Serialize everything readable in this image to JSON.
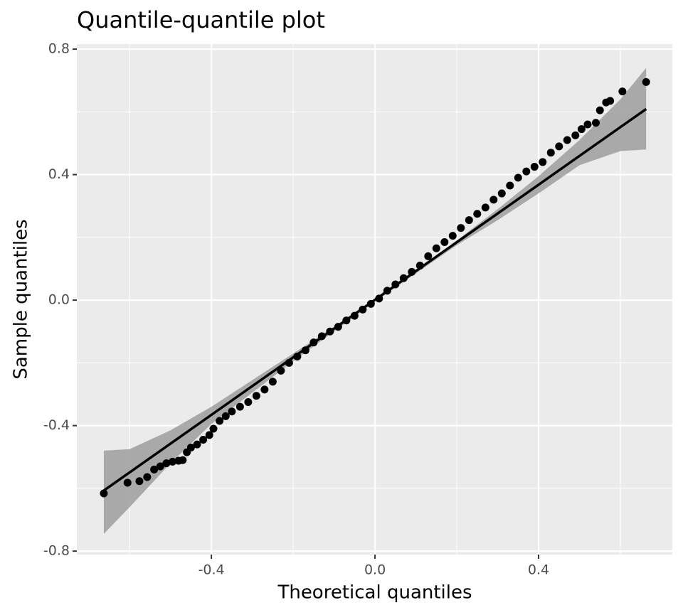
{
  "chart_data": {
    "type": "scatter",
    "title": "Quantile-quantile plot",
    "x_label": "Theoretical quantiles",
    "y_label": "Sample quantiles",
    "color": "#000000",
    "x": [
      -0.663,
      -0.605,
      -0.576,
      -0.557,
      -0.54,
      -0.525,
      -0.51,
      -0.495,
      -0.48,
      -0.47,
      -0.46,
      -0.45,
      -0.435,
      -0.42,
      -0.405,
      -0.395,
      -0.38,
      -0.365,
      -0.35,
      -0.33,
      -0.31,
      -0.29,
      -0.27,
      -0.25,
      -0.23,
      -0.21,
      -0.19,
      -0.17,
      -0.15,
      -0.13,
      -0.11,
      -0.09,
      -0.07,
      -0.05,
      -0.03,
      -0.01,
      0.01,
      0.03,
      0.05,
      0.07,
      0.09,
      0.11,
      0.13,
      0.15,
      0.17,
      0.19,
      0.21,
      0.23,
      0.25,
      0.27,
      0.29,
      0.31,
      0.33,
      0.35,
      0.37,
      0.39,
      0.41,
      0.43,
      0.45,
      0.47,
      0.49,
      0.505,
      0.52,
      0.54,
      0.55,
      0.565,
      0.575,
      0.605,
      0.663
    ],
    "values": [
      -0.616,
      -0.582,
      -0.577,
      -0.564,
      -0.54,
      -0.53,
      -0.52,
      -0.515,
      -0.512,
      -0.51,
      -0.485,
      -0.47,
      -0.46,
      -0.445,
      -0.43,
      -0.41,
      -0.385,
      -0.37,
      -0.355,
      -0.34,
      -0.325,
      -0.305,
      -0.285,
      -0.26,
      -0.225,
      -0.2,
      -0.18,
      -0.16,
      -0.135,
      -0.115,
      -0.1,
      -0.085,
      -0.065,
      -0.05,
      -0.03,
      -0.012,
      0.005,
      0.03,
      0.05,
      0.07,
      0.09,
      0.11,
      0.14,
      0.165,
      0.185,
      0.205,
      0.23,
      0.255,
      0.275,
      0.295,
      0.32,
      0.34,
      0.365,
      0.39,
      0.41,
      0.425,
      0.44,
      0.47,
      0.49,
      0.51,
      0.525,
      0.545,
      0.56,
      0.565,
      0.605,
      0.63,
      0.635,
      0.665,
      0.695
    ],
    "fit_line": {
      "x": [
        -0.663,
        0.663
      ],
      "y": [
        -0.607,
        0.609
      ],
      "color": "#000000"
    },
    "band": {
      "x": [
        -0.663,
        -0.6,
        -0.5,
        -0.4,
        -0.3,
        -0.2,
        -0.1,
        0,
        0.1,
        0.2,
        0.3,
        0.4,
        0.5,
        0.6,
        0.663
      ],
      "upper": [
        -0.48,
        -0.475,
        -0.415,
        -0.34,
        -0.255,
        -0.17,
        -0.085,
        0.005,
        0.095,
        0.19,
        0.29,
        0.395,
        0.51,
        0.64,
        0.74
      ],
      "lower": [
        -0.745,
        -0.66,
        -0.52,
        -0.395,
        -0.295,
        -0.195,
        -0.1,
        -0.005,
        0.085,
        0.175,
        0.255,
        0.34,
        0.43,
        0.475,
        0.48
      ],
      "color": "#999999"
    },
    "xlim": [
      -0.729,
      0.727
    ],
    "ylim": [
      -0.811,
      0.816
    ],
    "xticks": [
      {
        "value": -0.4,
        "label": "-0.4"
      },
      {
        "value": 0,
        "label": "0.0"
      },
      {
        "value": 0.4,
        "label": "0.4"
      }
    ],
    "yticks": [
      {
        "value": -0.8,
        "label": "-0.8"
      },
      {
        "value": -0.4,
        "label": "-0.4"
      },
      {
        "value": 0,
        "label": "0.0"
      },
      {
        "value": 0.4,
        "label": "0.4"
      },
      {
        "value": 0.8,
        "label": "0.8"
      }
    ],
    "xminor": [
      -0.6,
      -0.2,
      0.2,
      0.6
    ],
    "yminor": [
      -0.6,
      -0.2,
      0.2,
      0.6
    ],
    "grid": true
  }
}
